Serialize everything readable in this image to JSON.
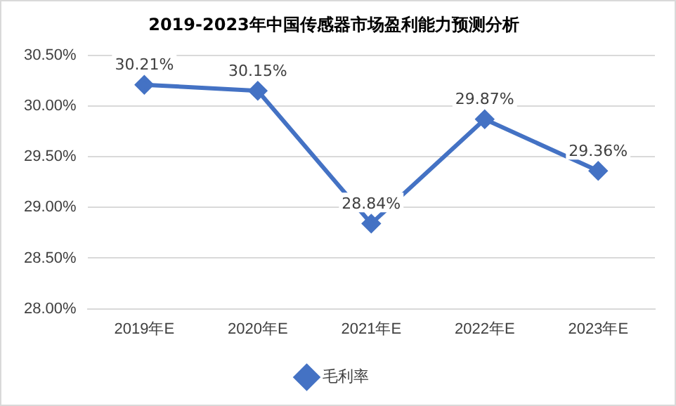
{
  "chart_data": {
    "type": "line",
    "title": "2019-2023年中国传感器市场盈利能力预测分析",
    "categories": [
      "2019年E",
      "2020年E",
      "2021年E",
      "2022年E",
      "2023年E"
    ],
    "series": [
      {
        "name": "毛利率",
        "color": "#4472c4",
        "values": [
          30.21,
          30.15,
          28.84,
          29.87,
          29.36
        ],
        "value_labels": [
          "30.21%",
          "30.15%",
          "28.84%",
          "29.87%",
          "29.36%"
        ]
      }
    ],
    "ylim": [
      28,
      30.5
    ],
    "yticks": [
      {
        "value": 28,
        "label": "28.00%"
      },
      {
        "value": 28.5,
        "label": "28.50%"
      },
      {
        "value": 29,
        "label": "29.00%"
      },
      {
        "value": 29.5,
        "label": "29.50%"
      },
      {
        "value": 30,
        "label": "30.00%"
      },
      {
        "value": 30.5,
        "label": "30.50%"
      }
    ],
    "grid": "y",
    "legend": "bottom",
    "marker": "diamond",
    "line_style": "solid"
  }
}
